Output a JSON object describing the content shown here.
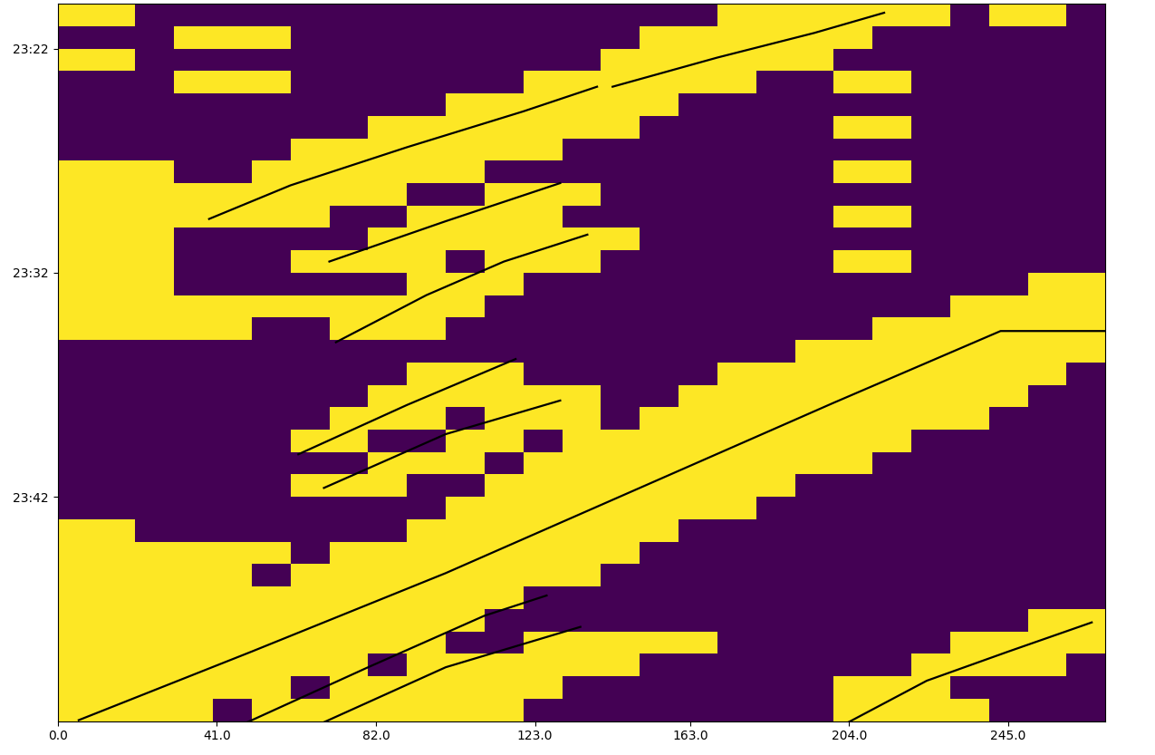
{
  "chart_data": {
    "type": "heatmap",
    "xlim": [
      0,
      270
    ],
    "ylim": [
      1432,
      1400
    ],
    "xticks": [
      {
        "value": 0,
        "label": "0.0"
      },
      {
        "value": 41,
        "label": "41.0"
      },
      {
        "value": 82,
        "label": "82.0"
      },
      {
        "value": 123,
        "label": "123.0"
      },
      {
        "value": 163,
        "label": "163.0"
      },
      {
        "value": 204,
        "label": "204.0"
      },
      {
        "value": 245,
        "label": "245.0"
      }
    ],
    "yticks": [
      {
        "value": 1402,
        "label": "23:22"
      },
      {
        "value": 1412,
        "label": "23:32"
      },
      {
        "value": 1422,
        "label": "23:42"
      }
    ],
    "grid": false,
    "value_range": [
      0,
      1
    ],
    "x_edges": [
      0,
      10,
      20,
      30,
      40,
      50,
      60,
      70,
      80,
      90,
      100,
      110,
      120,
      130,
      140,
      150,
      160,
      170,
      180,
      190,
      200,
      210,
      220,
      230,
      240,
      250,
      260,
      270
    ],
    "y_edges": [
      1400,
      1401,
      1402,
      1403,
      1404,
      1405,
      1406,
      1407,
      1408,
      1409,
      1410,
      1411,
      1412,
      1413,
      1414,
      1415,
      1416,
      1417,
      1418,
      1419,
      1420,
      1421,
      1422,
      1423,
      1424,
      1425,
      1426,
      1427,
      1428,
      1429,
      1430,
      1431,
      1432
    ],
    "cells": [
      [
        1,
        1,
        0,
        0,
        0,
        0,
        0,
        0,
        0,
        0,
        0,
        0,
        0,
        0,
        0,
        0,
        0,
        1,
        1,
        1,
        1,
        1,
        1,
        0,
        1,
        1,
        0
      ],
      [
        0,
        0,
        0,
        1,
        1,
        1,
        0,
        0,
        0,
        0,
        0,
        0,
        0,
        0,
        0,
        1,
        1,
        1,
        1,
        1,
        1,
        0,
        0,
        0,
        0,
        0,
        0
      ],
      [
        1,
        1,
        0,
        0,
        0,
        0,
        0,
        0,
        0,
        0,
        0,
        0,
        0,
        0,
        1,
        1,
        1,
        1,
        1,
        1,
        0,
        0,
        0,
        0,
        0,
        0,
        0
      ],
      [
        0,
        0,
        0,
        1,
        1,
        1,
        0,
        0,
        0,
        0,
        0,
        0,
        1,
        1,
        1,
        1,
        1,
        1,
        0,
        0,
        1,
        1,
        0,
        0,
        0,
        0,
        0
      ],
      [
        0,
        0,
        0,
        0,
        0,
        0,
        0,
        0,
        0,
        0,
        1,
        1,
        1,
        1,
        1,
        1,
        0,
        0,
        0,
        0,
        0,
        0,
        0,
        0,
        0,
        0,
        0
      ],
      [
        0,
        0,
        0,
        0,
        0,
        0,
        0,
        0,
        1,
        1,
        1,
        1,
        1,
        1,
        1,
        0,
        0,
        0,
        0,
        0,
        1,
        1,
        0,
        0,
        0,
        0,
        0
      ],
      [
        0,
        0,
        0,
        0,
        0,
        0,
        1,
        1,
        1,
        1,
        1,
        1,
        1,
        0,
        0,
        0,
        0,
        0,
        0,
        0,
        0,
        0,
        0,
        0,
        0,
        0,
        0
      ],
      [
        1,
        1,
        1,
        0,
        0,
        1,
        1,
        1,
        1,
        1,
        1,
        0,
        0,
        0,
        0,
        0,
        0,
        0,
        0,
        0,
        1,
        1,
        0,
        0,
        0,
        0,
        0
      ],
      [
        1,
        1,
        1,
        1,
        1,
        1,
        1,
        1,
        1,
        0,
        0,
        1,
        1,
        1,
        0,
        0,
        0,
        0,
        0,
        0,
        0,
        0,
        0,
        0,
        0,
        0,
        0
      ],
      [
        1,
        1,
        1,
        1,
        1,
        1,
        1,
        0,
        0,
        1,
        1,
        1,
        1,
        0,
        0,
        0,
        0,
        0,
        0,
        0,
        1,
        1,
        0,
        0,
        0,
        0,
        0
      ],
      [
        1,
        1,
        1,
        0,
        0,
        0,
        0,
        0,
        1,
        1,
        1,
        1,
        1,
        1,
        1,
        0,
        0,
        0,
        0,
        0,
        0,
        0,
        0,
        0,
        0,
        0,
        0
      ],
      [
        1,
        1,
        1,
        0,
        0,
        0,
        1,
        1,
        1,
        1,
        0,
        1,
        1,
        1,
        0,
        0,
        0,
        0,
        0,
        0,
        1,
        1,
        0,
        0,
        0,
        0,
        0
      ],
      [
        1,
        1,
        1,
        0,
        0,
        0,
        0,
        0,
        0,
        1,
        1,
        1,
        0,
        0,
        0,
        0,
        0,
        0,
        0,
        0,
        0,
        0,
        0,
        0,
        0,
        1,
        1
      ],
      [
        1,
        1,
        1,
        1,
        1,
        1,
        1,
        1,
        1,
        1,
        1,
        0,
        0,
        0,
        0,
        0,
        0,
        0,
        0,
        0,
        0,
        0,
        0,
        1,
        1,
        1,
        1
      ],
      [
        1,
        1,
        1,
        1,
        1,
        0,
        0,
        1,
        1,
        1,
        0,
        0,
        0,
        0,
        0,
        0,
        0,
        0,
        0,
        0,
        0,
        1,
        1,
        1,
        1,
        1,
        1
      ],
      [
        0,
        0,
        0,
        0,
        0,
        0,
        0,
        0,
        0,
        0,
        0,
        0,
        0,
        0,
        0,
        0,
        0,
        0,
        0,
        1,
        1,
        1,
        1,
        1,
        1,
        1,
        1
      ],
      [
        0,
        0,
        0,
        0,
        0,
        0,
        0,
        0,
        0,
        1,
        1,
        1,
        0,
        0,
        0,
        0,
        0,
        1,
        1,
        1,
        1,
        1,
        1,
        1,
        1,
        1,
        0
      ],
      [
        0,
        0,
        0,
        0,
        0,
        0,
        0,
        0,
        1,
        1,
        1,
        1,
        1,
        1,
        0,
        0,
        1,
        1,
        1,
        1,
        1,
        1,
        1,
        1,
        1,
        0,
        0
      ],
      [
        0,
        0,
        0,
        0,
        0,
        0,
        0,
        1,
        1,
        1,
        0,
        1,
        1,
        1,
        0,
        1,
        1,
        1,
        1,
        1,
        1,
        1,
        1,
        1,
        0,
        0,
        0
      ],
      [
        0,
        0,
        0,
        0,
        0,
        0,
        1,
        1,
        0,
        0,
        1,
        1,
        0,
        1,
        1,
        1,
        1,
        1,
        1,
        1,
        1,
        1,
        0,
        0,
        0,
        0,
        0
      ],
      [
        0,
        0,
        0,
        0,
        0,
        0,
        0,
        0,
        1,
        1,
        1,
        0,
        1,
        1,
        1,
        1,
        1,
        1,
        1,
        1,
        1,
        0,
        0,
        0,
        0,
        0,
        0
      ],
      [
        0,
        0,
        0,
        0,
        0,
        0,
        1,
        1,
        1,
        0,
        0,
        1,
        1,
        1,
        1,
        1,
        1,
        1,
        1,
        0,
        0,
        0,
        0,
        0,
        0,
        0,
        0
      ],
      [
        0,
        0,
        0,
        0,
        0,
        0,
        0,
        0,
        0,
        0,
        1,
        1,
        1,
        1,
        1,
        1,
        1,
        1,
        0,
        0,
        0,
        0,
        0,
        0,
        0,
        0,
        0
      ],
      [
        1,
        1,
        0,
        0,
        0,
        0,
        0,
        0,
        0,
        1,
        1,
        1,
        1,
        1,
        1,
        1,
        0,
        0,
        0,
        0,
        0,
        0,
        0,
        0,
        0,
        0,
        0
      ],
      [
        1,
        1,
        1,
        1,
        1,
        1,
        0,
        1,
        1,
        1,
        1,
        1,
        1,
        1,
        1,
        0,
        0,
        0,
        0,
        0,
        0,
        0,
        0,
        0,
        0,
        0,
        0
      ],
      [
        1,
        1,
        1,
        1,
        1,
        0,
        1,
        1,
        1,
        1,
        1,
        1,
        1,
        1,
        0,
        0,
        0,
        0,
        0,
        0,
        0,
        0,
        0,
        0,
        0,
        0,
        0
      ],
      [
        1,
        1,
        1,
        1,
        1,
        1,
        1,
        1,
        1,
        1,
        1,
        1,
        0,
        0,
        0,
        0,
        0,
        0,
        0,
        0,
        0,
        0,
        0,
        0,
        0,
        0,
        0
      ],
      [
        1,
        1,
        1,
        1,
        1,
        1,
        1,
        1,
        1,
        1,
        1,
        0,
        0,
        0,
        0,
        0,
        0,
        0,
        0,
        0,
        0,
        0,
        0,
        0,
        0,
        1,
        1
      ],
      [
        1,
        1,
        1,
        1,
        1,
        1,
        1,
        1,
        1,
        1,
        0,
        0,
        1,
        1,
        1,
        1,
        1,
        0,
        0,
        0,
        0,
        0,
        0,
        1,
        1,
        1,
        1
      ],
      [
        1,
        1,
        1,
        1,
        1,
        1,
        1,
        1,
        0,
        1,
        1,
        1,
        1,
        1,
        1,
        0,
        0,
        0,
        0,
        0,
        0,
        0,
        1,
        1,
        1,
        1,
        0
      ],
      [
        1,
        1,
        1,
        1,
        1,
        1,
        0,
        1,
        1,
        1,
        1,
        1,
        1,
        0,
        0,
        0,
        0,
        0,
        0,
        0,
        1,
        1,
        1,
        0,
        0,
        0,
        0
      ],
      [
        1,
        1,
        1,
        1,
        0,
        1,
        1,
        1,
        1,
        1,
        1,
        1,
        0,
        0,
        0,
        0,
        0,
        0,
        0,
        0,
        1,
        1,
        1,
        1,
        0,
        0,
        0
      ]
    ],
    "overlay_lines": [
      {
        "color": "#000000",
        "x": [
          39,
          60,
          90,
          120,
          139
        ],
        "y": [
          1409.6,
          1408.1,
          1406.4,
          1404.8,
          1403.7
        ]
      },
      {
        "color": "#000000",
        "x": [
          143,
          170,
          195,
          213
        ],
        "y": [
          1403.7,
          1402.4,
          1401.3,
          1400.4
        ]
      },
      {
        "color": "#000000",
        "x": [
          70,
          100,
          129.5
        ],
        "y": [
          1411.5,
          1409.7,
          1408.0
        ]
      },
      {
        "color": "#000000",
        "x": [
          71.7,
          95,
          115,
          136.5
        ],
        "y": [
          1415.1,
          1413.0,
          1411.5,
          1410.3
        ]
      },
      {
        "color": "#000000",
        "x": [
          62,
          90,
          118
        ],
        "y": [
          1420.1,
          1417.9,
          1415.85
        ]
      },
      {
        "color": "#000000",
        "x": [
          68.6,
          100,
          129.5
        ],
        "y": [
          1421.6,
          1419.2,
          1417.7
        ]
      },
      {
        "color": "#000000",
        "x": [
          5.4,
          50,
          100,
          150,
          200,
          243,
          275
        ],
        "y": [
          1431.96,
          1428.9,
          1425.4,
          1421.6,
          1417.8,
          1414.6,
          1414.6
        ]
      },
      {
        "color": "#000000",
        "x": [
          47,
          80,
          110,
          126
        ],
        "y": [
          1432.2,
          1429.6,
          1427.3,
          1426.4
        ]
      },
      {
        "color": "#000000",
        "x": [
          68,
          100,
          134.7
        ],
        "y": [
          1432.1,
          1429.6,
          1427.8
        ]
      },
      {
        "color": "#000000",
        "x": [
          200,
          224,
          245,
          266.5
        ],
        "y": [
          1432.4,
          1430.2,
          1428.9,
          1427.6
        ]
      }
    ]
  }
}
